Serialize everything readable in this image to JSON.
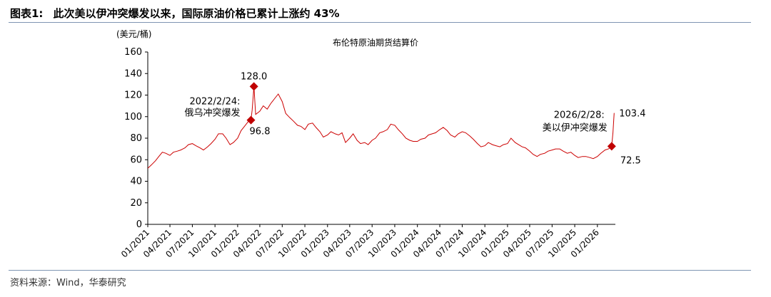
{
  "figure": {
    "number": "图表1:",
    "caption": "此次美以伊冲突爆发以来，国际原油价格已累计上涨约 43%",
    "source": "资料来源：Wind，华泰研究"
  },
  "colors": {
    "line": "#cc0000",
    "marker": "#c00000",
    "rule": "#7f95b3",
    "axis": "#000000"
  },
  "chart_data": {
    "type": "line",
    "title": "布伦特原油期货结算价",
    "unit_label": "(美元/桶)",
    "xlabel": "",
    "ylabel": "",
    "ylim": [
      0,
      160
    ],
    "yticks": [
      0,
      20,
      40,
      60,
      80,
      100,
      120,
      140,
      160
    ],
    "xlim": [
      "2021-01",
      "2026-04"
    ],
    "xticks": [
      "01/2021",
      "04/2021",
      "07/2021",
      "10/2021",
      "01/2022",
      "04/2022",
      "07/2022",
      "10/2022",
      "01/2023",
      "04/2023",
      "07/2023",
      "10/2023",
      "01/2024",
      "04/2024",
      "07/2024",
      "10/2024",
      "01/2025",
      "04/2025",
      "07/2025",
      "10/2025",
      "01/2026"
    ],
    "grid": false,
    "legend": "none",
    "series": [
      {
        "x": [
          "2021-01-01",
          "2021-01-15",
          "2021-02-01",
          "2021-02-15",
          "2021-03-01",
          "2021-03-15",
          "2021-04-01",
          "2021-04-15",
          "2021-05-01",
          "2021-05-15",
          "2021-06-01",
          "2021-06-15",
          "2021-07-01",
          "2021-07-15",
          "2021-08-01",
          "2021-08-15",
          "2021-09-01",
          "2021-09-15",
          "2021-10-01",
          "2021-10-15",
          "2021-11-01",
          "2021-11-15",
          "2021-12-01",
          "2021-12-15",
          "2022-01-01",
          "2022-01-15",
          "2022-02-01",
          "2022-02-15",
          "2022-02-24",
          "2022-03-01",
          "2022-03-08",
          "2022-03-15",
          "2022-04-01",
          "2022-04-15",
          "2022-05-01",
          "2022-05-15",
          "2022-06-01",
          "2022-06-15",
          "2022-07-01",
          "2022-07-15",
          "2022-08-01",
          "2022-08-15",
          "2022-09-01",
          "2022-09-15",
          "2022-10-01",
          "2022-10-15",
          "2022-11-01",
          "2022-11-15",
          "2022-12-01",
          "2022-12-15",
          "2023-01-01",
          "2023-01-15",
          "2023-02-01",
          "2023-02-15",
          "2023-03-01",
          "2023-03-15",
          "2023-04-01",
          "2023-04-15",
          "2023-05-01",
          "2023-05-15",
          "2023-06-01",
          "2023-06-15",
          "2023-07-01",
          "2023-07-15",
          "2023-08-01",
          "2023-08-15",
          "2023-09-01",
          "2023-09-15",
          "2023-10-01",
          "2023-10-15",
          "2023-11-01",
          "2023-11-15",
          "2023-12-01",
          "2023-12-15",
          "2024-01-01",
          "2024-01-15",
          "2024-02-01",
          "2024-02-15",
          "2024-03-01",
          "2024-03-15",
          "2024-04-01",
          "2024-04-15",
          "2024-05-01",
          "2024-05-15",
          "2024-06-01",
          "2024-06-15",
          "2024-07-01",
          "2024-07-15",
          "2024-08-01",
          "2024-08-15",
          "2024-09-01",
          "2024-09-15",
          "2024-10-01",
          "2024-10-15",
          "2024-11-01",
          "2024-11-15",
          "2024-12-01",
          "2024-12-15",
          "2025-01-01",
          "2025-01-15",
          "2025-02-01",
          "2025-02-15",
          "2025-03-01",
          "2025-03-15",
          "2025-04-01",
          "2025-04-15",
          "2025-05-01",
          "2025-05-15",
          "2025-06-01",
          "2025-06-15",
          "2025-07-01",
          "2025-07-15",
          "2025-08-01",
          "2025-08-15",
          "2025-09-01",
          "2025-09-15",
          "2025-10-01",
          "2025-10-15",
          "2025-11-01",
          "2025-11-15",
          "2025-12-01",
          "2025-12-15",
          "2026-01-01",
          "2026-01-15",
          "2026-02-01",
          "2026-02-15",
          "2026-02-28",
          "2026-03-05",
          "2026-03-10"
        ],
        "y": [
          52,
          55,
          59,
          63,
          67,
          66,
          64,
          67,
          68,
          69,
          71,
          74,
          75,
          73,
          71,
          69,
          72,
          75,
          79,
          84,
          84,
          80,
          74,
          76,
          80,
          87,
          92,
          96,
          96.8,
          106,
          128.0,
          102,
          105,
          110,
          107,
          112,
          117,
          121,
          114,
          103,
          99,
          96,
          92,
          91,
          88,
          93,
          94,
          90,
          86,
          81,
          83,
          86,
          84,
          83,
          85,
          76,
          80,
          84,
          78,
          75,
          76,
          74,
          78,
          80,
          85,
          86,
          88,
          93,
          92,
          88,
          84,
          80,
          78,
          77,
          77,
          79,
          80,
          83,
          84,
          85,
          88,
          90,
          87,
          83,
          81,
          84,
          86,
          85,
          82,
          79,
          75,
          72,
          73,
          76,
          74,
          73,
          72,
          74,
          75,
          80,
          76,
          74,
          72,
          71,
          68,
          65,
          63,
          65,
          66,
          68,
          69,
          70,
          70,
          68,
          66,
          67,
          64,
          62,
          63,
          63,
          62,
          61,
          63,
          66,
          69,
          70,
          72.5,
          85,
          103.4
        ]
      }
    ],
    "annotations": [
      {
        "label": "2022/2/24:",
        "label2": "俄乌冲突爆发",
        "x": "2022-02-24",
        "y": 96.8,
        "value_label": "96.8"
      },
      {
        "x": "2022-03-08",
        "y": 128.0,
        "value_label": "128.0"
      },
      {
        "label": "2026/2/28:",
        "label2": "美以伊冲突爆发",
        "x": "2026-02-28",
        "y": 72.5,
        "value_label": "72.5"
      },
      {
        "x": "2026-03-10",
        "y": 103.4,
        "value_label": "103.4"
      }
    ]
  }
}
